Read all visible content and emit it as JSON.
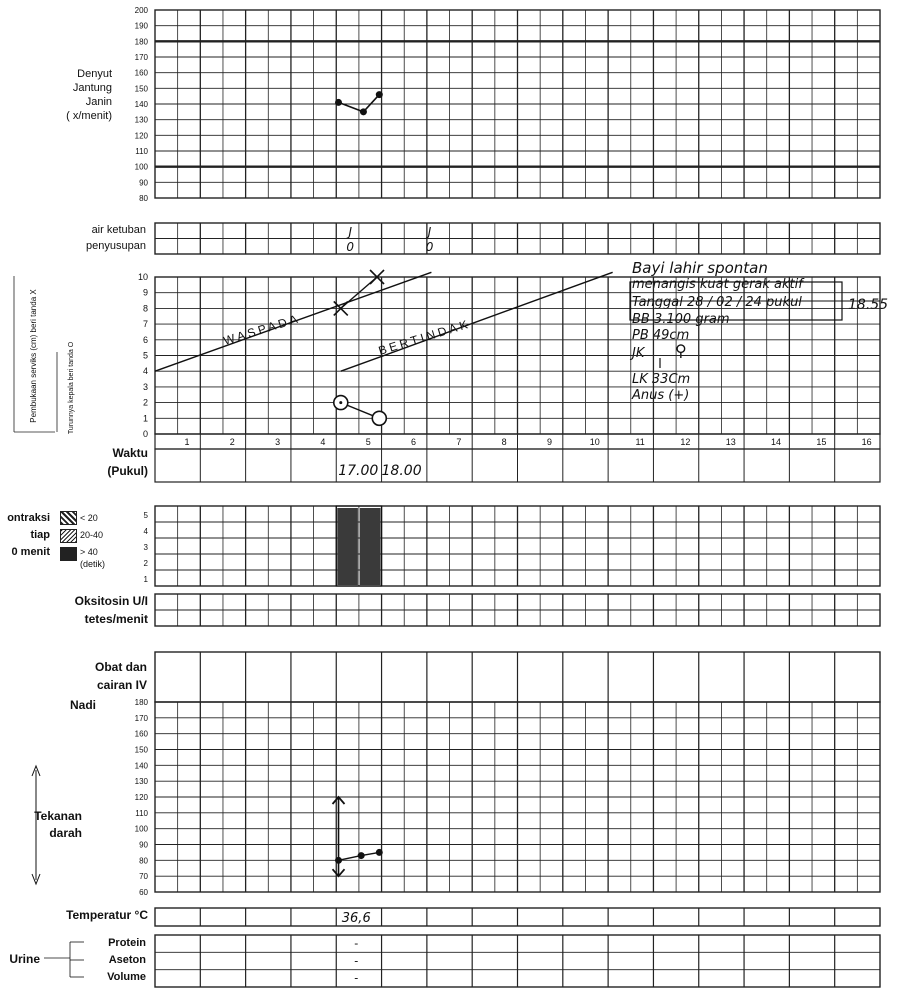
{
  "fhr": {
    "label_lines": [
      "Denyut",
      "Jantung",
      "Janin",
      "( x/menit)"
    ],
    "ticks": [
      "200",
      "190",
      "180",
      "170",
      "160",
      "150",
      "140",
      "130",
      "120",
      "110",
      "100",
      "90",
      "80"
    ],
    "points_bpm": [
      141,
      135,
      146
    ]
  },
  "membrane": {
    "labels": [
      "air ketuban",
      "penyusupan"
    ],
    "entries": [
      {
        "column": 4,
        "amniotic": "J",
        "molding": "0"
      },
      {
        "column": 5,
        "amniotic": "J",
        "molding": "0"
      }
    ]
  },
  "cervix": {
    "vertical_label_1": "Pembukaan serviks (cm) beri tanda X",
    "vertical_label_2": "Turunnya kepala beri tanda O",
    "ticks": [
      "10",
      "9",
      "8",
      "7",
      "6",
      "5",
      "4",
      "3",
      "2",
      "1",
      "0"
    ],
    "alert_label": "WASPADA",
    "action_label": "BERTINDAK",
    "dilation_cm": [
      8,
      10
    ],
    "descent": [
      2,
      1
    ],
    "hours": [
      "1",
      "2",
      "3",
      "4",
      "5",
      "6",
      "7",
      "8",
      "9",
      "10",
      "11",
      "12",
      "13",
      "14",
      "15",
      "16"
    ]
  },
  "birth_note": {
    "line1": "Bayi lahir spontan",
    "line2": "menangis kuat gerak aktif",
    "line3": "Tanggal  28 / 02 / 24  pukul",
    "time": "18.55",
    "line4": "BB 3.100 gram",
    "line5": "PB 49cm",
    "line6": "JK",
    "line7": "LK 33Cm",
    "line8": "Anus (+)"
  },
  "waktu": {
    "label_lines": [
      "Waktu",
      "(Pukul)"
    ],
    "entries": [
      "17.00",
      "18.00"
    ]
  },
  "contractions": {
    "label_lines": [
      "ontraksi",
      "tiap",
      "0 menit"
    ],
    "ticks": [
      "5",
      "4",
      "3",
      "2",
      "1"
    ],
    "legend": [
      "< 20",
      "20-40",
      "> 40",
      "(detik)"
    ],
    "count_per_10min": [
      5,
      5
    ],
    "legend_type_shown": "> 40"
  },
  "oxytocin": {
    "label_lines": [
      "Oksitosin U/I",
      "tetes/menit"
    ]
  },
  "drugs": {
    "label_lines": [
      "Obat dan",
      "cairan IV"
    ]
  },
  "vitals": {
    "nadi_label": "Nadi",
    "bp_label_lines": [
      "Tekanan",
      "darah"
    ],
    "ticks": [
      "180",
      "170",
      "160",
      "150",
      "140",
      "130",
      "120",
      "110",
      "100",
      "90",
      "80",
      "70",
      "60"
    ],
    "pulse": [
      80,
      83,
      85
    ],
    "bp_systolic": 120,
    "bp_diastolic": 70
  },
  "temperature": {
    "label": "Temperatur  °C",
    "value": "36,6"
  },
  "urine": {
    "label": "Urine",
    "rows": [
      "Protein",
      "Aseton",
      "Volume"
    ],
    "values": [
      "-",
      "-",
      "-"
    ]
  },
  "colors": {
    "ink": "#111111",
    "grid": "#222222",
    "shade": "#3a3a3a"
  }
}
